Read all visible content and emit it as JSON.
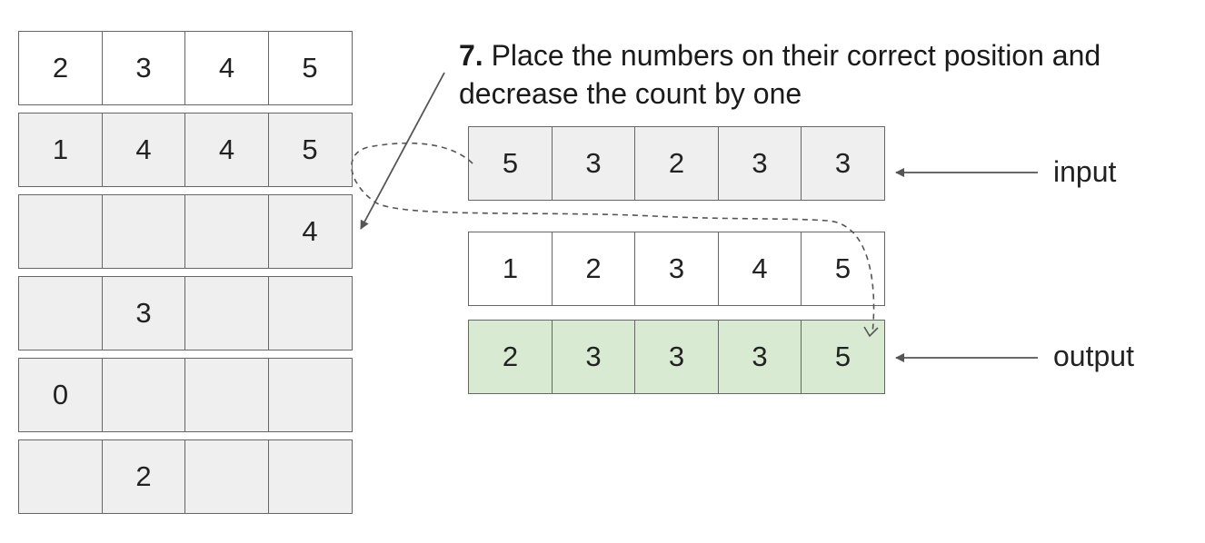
{
  "step": {
    "number": "7.",
    "text": "Place the numbers on their correct position and decrease the count by one"
  },
  "left_table": {
    "rows": [
      [
        "2",
        "3",
        "4",
        "5"
      ],
      [
        "1",
        "4",
        "4",
        "5"
      ],
      [
        "",
        "",
        "",
        "4"
      ],
      [
        "",
        "3",
        "",
        ""
      ],
      [
        "0",
        "",
        "",
        ""
      ],
      [
        "",
        "2",
        "",
        ""
      ]
    ]
  },
  "input_array": {
    "label": "input",
    "values": [
      "5",
      "3",
      "2",
      "3",
      "3"
    ]
  },
  "index_array": {
    "values": [
      "1",
      "2",
      "3",
      "4",
      "5"
    ]
  },
  "output_array": {
    "label": "output",
    "values": [
      "2",
      "3",
      "3",
      "3",
      "5"
    ]
  },
  "colors": {
    "gray_cell": "#efefef",
    "white_cell": "#ffffff",
    "green_cell": "#d9ead3",
    "border": "#666666"
  }
}
